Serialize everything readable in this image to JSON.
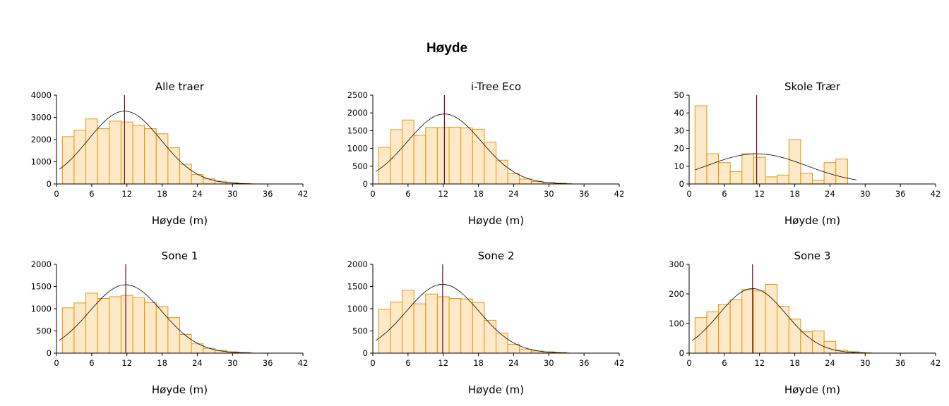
{
  "title": "Høyde",
  "colors": {
    "bar_fill": "#fde9c7",
    "bar_stroke": "#e8940e",
    "mean_line": "#6b0f1a",
    "curve": "#000000"
  },
  "chart_data": [
    {
      "type": "bar",
      "title": "Alle traer",
      "xlabel": "Høyde (m)",
      "ylabel": "",
      "bin_width": 2,
      "bin_starts": [
        1,
        3,
        5,
        7,
        9,
        11,
        13,
        15,
        17,
        19,
        21,
        23,
        25,
        27,
        29,
        31
      ],
      "values": [
        2130,
        2420,
        2930,
        2490,
        2830,
        2790,
        2650,
        2490,
        2260,
        1630,
        890,
        430,
        230,
        120,
        60,
        25
      ],
      "xlim": [
        0,
        42
      ],
      "xticks": [
        0,
        6,
        12,
        18,
        24,
        30,
        36,
        42
      ],
      "ylim": [
        0,
        4000
      ],
      "yticks": [
        0,
        1000,
        2000,
        3000,
        4000
      ],
      "mean": 11.6,
      "normal_fit": {
        "mean": 11.6,
        "sd": 6.2,
        "peak": 3280,
        "range": [
          0.5,
          33.5
        ]
      }
    },
    {
      "type": "bar",
      "title": "i-Tree Eco",
      "xlabel": "Høyde (m)",
      "ylabel": "",
      "bin_width": 2,
      "bin_starts": [
        1,
        3,
        5,
        7,
        9,
        11,
        13,
        15,
        17,
        19,
        21,
        23,
        25,
        27,
        29,
        31
      ],
      "values": [
        1030,
        1530,
        1800,
        1370,
        1590,
        1590,
        1600,
        1580,
        1540,
        1180,
        670,
        290,
        140,
        70,
        40,
        20
      ],
      "xlim": [
        0,
        42
      ],
      "xticks": [
        0,
        6,
        12,
        18,
        24,
        30,
        36,
        42
      ],
      "ylim": [
        0,
        2500
      ],
      "yticks": [
        0,
        500,
        1000,
        1500,
        2000,
        2500
      ],
      "mean": 12.2,
      "normal_fit": {
        "mean": 12.2,
        "sd": 6.3,
        "peak": 1970,
        "range": [
          0.5,
          34
        ]
      }
    },
    {
      "type": "bar",
      "title": "Skole Trær",
      "xlabel": "Høyde (m)",
      "ylabel": "",
      "bin_width": 2,
      "bin_starts": [
        1,
        3,
        5,
        7,
        9,
        11,
        13,
        15,
        17,
        19,
        21,
        23,
        25,
        27
      ],
      "values": [
        44,
        17,
        12,
        7,
        17,
        15,
        4,
        5,
        25,
        6,
        2,
        12,
        14,
        0
      ],
      "xlim": [
        0,
        42
      ],
      "xticks": [
        0,
        6,
        12,
        18,
        24,
        30,
        36,
        42
      ],
      "ylim": [
        0,
        50
      ],
      "yticks": [
        0,
        10,
        20,
        30,
        40,
        50
      ],
      "mean": 11.5,
      "normal_fit": {
        "mean": 11.5,
        "sd": 8.5,
        "peak": 17,
        "range": [
          1,
          28.5
        ]
      }
    },
    {
      "type": "bar",
      "title": "Sone 1",
      "xlabel": "Høyde (m)",
      "ylabel": "",
      "bin_width": 2,
      "bin_starts": [
        1,
        3,
        5,
        7,
        9,
        11,
        13,
        15,
        17,
        19,
        21,
        23,
        25,
        27,
        29,
        31
      ],
      "values": [
        1020,
        1130,
        1350,
        1230,
        1270,
        1300,
        1250,
        1140,
        1050,
        800,
        420,
        210,
        110,
        60,
        30,
        15
      ],
      "xlim": [
        0,
        42
      ],
      "xticks": [
        0,
        6,
        12,
        18,
        24,
        30,
        36,
        42
      ],
      "ylim": [
        0,
        2000
      ],
      "yticks": [
        0,
        500,
        1000,
        1500,
        2000
      ],
      "mean": 11.8,
      "normal_fit": {
        "mean": 11.8,
        "sd": 6.2,
        "peak": 1540,
        "range": [
          0.5,
          33.5
        ]
      }
    },
    {
      "type": "bar",
      "title": "Sone 2",
      "xlabel": "Høyde (m)",
      "ylabel": "",
      "bin_width": 2,
      "bin_starts": [
        1,
        3,
        5,
        7,
        9,
        11,
        13,
        15,
        17,
        19,
        21,
        23,
        25,
        27,
        29,
        31
      ],
      "values": [
        990,
        1150,
        1420,
        1110,
        1330,
        1270,
        1230,
        1220,
        1140,
        740,
        450,
        200,
        90,
        50,
        30,
        15
      ],
      "xlim": [
        0,
        42
      ],
      "xticks": [
        0,
        6,
        12,
        18,
        24,
        30,
        36,
        42
      ],
      "ylim": [
        0,
        2000
      ],
      "yticks": [
        0,
        500,
        1000,
        1500,
        2000
      ],
      "mean": 11.9,
      "normal_fit": {
        "mean": 11.9,
        "sd": 6.2,
        "peak": 1550,
        "range": [
          0.5,
          33.5
        ]
      }
    },
    {
      "type": "bar",
      "title": "Sone 3",
      "xlabel": "Høyde (m)",
      "ylabel": "",
      "bin_width": 2,
      "bin_starts": [
        1,
        3,
        5,
        7,
        9,
        11,
        13,
        15,
        17,
        19,
        21,
        23,
        25,
        27,
        29
      ],
      "values": [
        120,
        140,
        165,
        180,
        215,
        210,
        232,
        158,
        115,
        72,
        75,
        40,
        10,
        5,
        2
      ],
      "xlim": [
        0,
        42
      ],
      "xticks": [
        0,
        6,
        12,
        18,
        24,
        30,
        36,
        42
      ],
      "ylim": [
        0,
        300
      ],
      "yticks": [
        0,
        100,
        200,
        300
      ],
      "mean": 10.8,
      "normal_fit": {
        "mean": 10.8,
        "sd": 5.7,
        "peak": 218,
        "range": [
          0.5,
          30
        ]
      }
    }
  ]
}
